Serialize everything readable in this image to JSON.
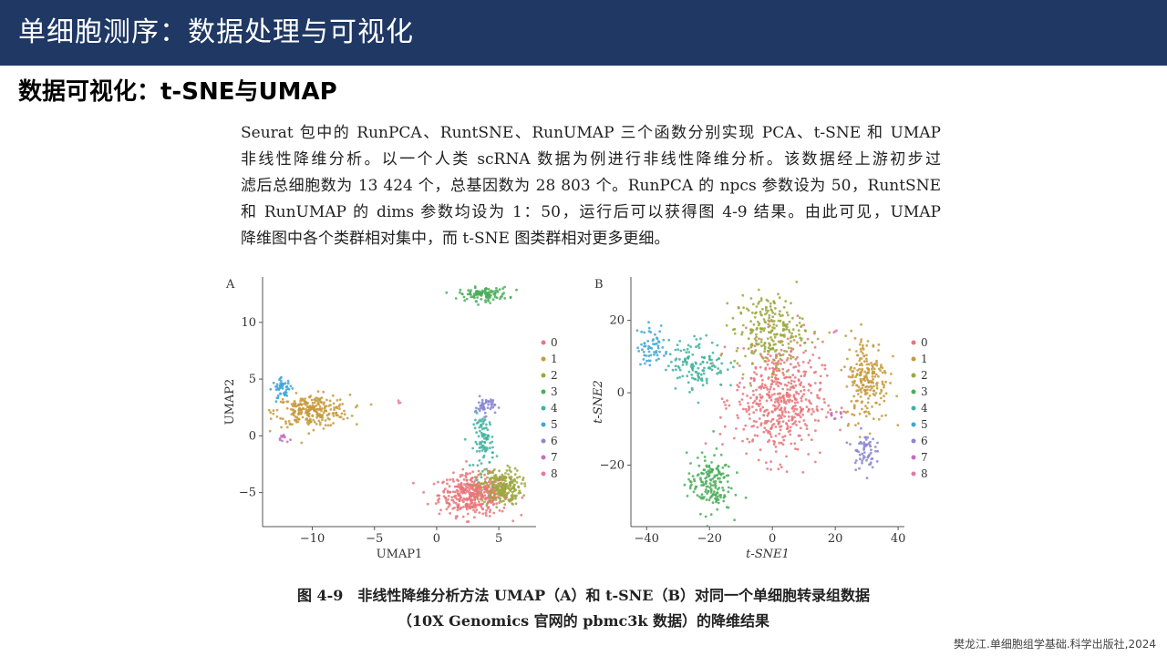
{
  "header": {
    "title": "单细胞测序：数据处理与可视化"
  },
  "subtitle": "数据可视化：t-SNE与UMAP",
  "paragraph": [
    "Seurat 包中的 RunPCA、RuntSNE、RunUMAP 三个函数分别实现 PCA、t-SNE 和 UMAP",
    "非线性降维分析。以一个人类 scRNA 数据为例进行非线性降维分析。该数据经上游初步过",
    "滤后总细胞数为 13 424 个，总基因数为 28 803 个。RunPCA 的 npcs 参数设为 50，RuntSNE",
    "和 RunUMAP 的 dims 参数均设为 1：50，运行后可以获得图 4-9 结果。由此可见，UMAP",
    "降维图中各个类群相对集中，而 t-SNE 图类群相对更多更细。"
  ],
  "caption": {
    "line1": "图 4-9　非线性降维分析方法 UMAP（A）和 t-SNE（B）对同一个单细胞转录组数据",
    "line2": "（10X Genomics 官网的 pbmc3k 数据）的降维结果"
  },
  "citation": "樊龙江.单细胞组学基础.科学出版社,2024",
  "cluster_colors": [
    "#e8767a",
    "#c79a3c",
    "#9aa83c",
    "#4aae5a",
    "#3fb3a0",
    "#3fa6d6",
    "#8a86d0",
    "#c46fbf",
    "#e57aa8"
  ],
  "chart_data": [
    {
      "type": "scatter",
      "panel_label": "A",
      "xlabel": "UMAP1",
      "ylabel": "UMAP2",
      "xlim": [
        -14,
        8
      ],
      "ylim": [
        -8,
        14
      ],
      "xticks": [
        -10,
        -5,
        0,
        5
      ],
      "yticks": [
        -5,
        0,
        5,
        10
      ],
      "legend": [
        "0",
        "1",
        "2",
        "3",
        "4",
        "5",
        "6",
        "7",
        "8"
      ],
      "clusters": [
        {
          "name": "0",
          "cx": 3.0,
          "cy": -5.2,
          "sx": 1.4,
          "sy": 0.9,
          "n": 420
        },
        {
          "name": "1",
          "cx": -10.0,
          "cy": 2.2,
          "sx": 1.5,
          "sy": 0.7,
          "n": 260
        },
        {
          "name": "2",
          "cx": 5.2,
          "cy": -4.5,
          "sx": 0.8,
          "sy": 0.8,
          "n": 220
        },
        {
          "name": "3",
          "cx": 3.8,
          "cy": 12.5,
          "sx": 1.0,
          "sy": 0.3,
          "n": 110
        },
        {
          "name": "4",
          "cx": 3.8,
          "cy": -0.5,
          "sx": 0.4,
          "sy": 1.2,
          "n": 90
        },
        {
          "name": "5",
          "cx": -12.4,
          "cy": 4.2,
          "sx": 0.4,
          "sy": 0.4,
          "n": 50
        },
        {
          "name": "6",
          "cx": 3.9,
          "cy": 2.6,
          "sx": 0.4,
          "sy": 0.4,
          "n": 50
        },
        {
          "name": "7",
          "cx": -12.3,
          "cy": -0.2,
          "sx": 0.2,
          "sy": 0.2,
          "n": 12
        },
        {
          "name": "8",
          "cx": -3.0,
          "cy": 3.0,
          "sx": 0.1,
          "sy": 0.1,
          "n": 3
        }
      ]
    },
    {
      "type": "scatter",
      "panel_label": "B",
      "xlabel": "t-SNE1",
      "ylabel": "t-SNE2",
      "xlim": [
        -45,
        42
      ],
      "ylim": [
        -37,
        32
      ],
      "xticks": [
        -40,
        -20,
        0,
        20,
        40
      ],
      "yticks": [
        -20,
        0,
        20
      ],
      "legend": [
        "0",
        "1",
        "2",
        "3",
        "4",
        "5",
        "6",
        "7",
        "8"
      ],
      "clusters": [
        {
          "name": "0",
          "cx": 2.0,
          "cy": -2.0,
          "sx": 7.0,
          "sy": 8.0,
          "n": 500
        },
        {
          "name": "1",
          "cx": 30.0,
          "cy": 4.0,
          "sx": 3.5,
          "sy": 6.0,
          "n": 220
        },
        {
          "name": "2",
          "cx": -1.0,
          "cy": 17.0,
          "sx": 5.5,
          "sy": 5.0,
          "n": 240
        },
        {
          "name": "3",
          "cx": -20.0,
          "cy": -25.0,
          "sx": 3.5,
          "sy": 4.0,
          "n": 170
        },
        {
          "name": "4",
          "cx": -24.0,
          "cy": 8.0,
          "sx": 4.5,
          "sy": 3.5,
          "n": 130
        },
        {
          "name": "5",
          "cx": -38.0,
          "cy": 13.0,
          "sx": 2.5,
          "sy": 3.0,
          "n": 60
        },
        {
          "name": "6",
          "cx": 29.0,
          "cy": -16.0,
          "sx": 1.8,
          "sy": 2.5,
          "n": 60
        },
        {
          "name": "7",
          "cx": 20.0,
          "cy": -6.0,
          "sx": 1.2,
          "sy": 0.6,
          "n": 10
        },
        {
          "name": "8",
          "cx": 20.0,
          "cy": 17.0,
          "sx": 0.3,
          "sy": 0.3,
          "n": 3
        }
      ]
    }
  ]
}
